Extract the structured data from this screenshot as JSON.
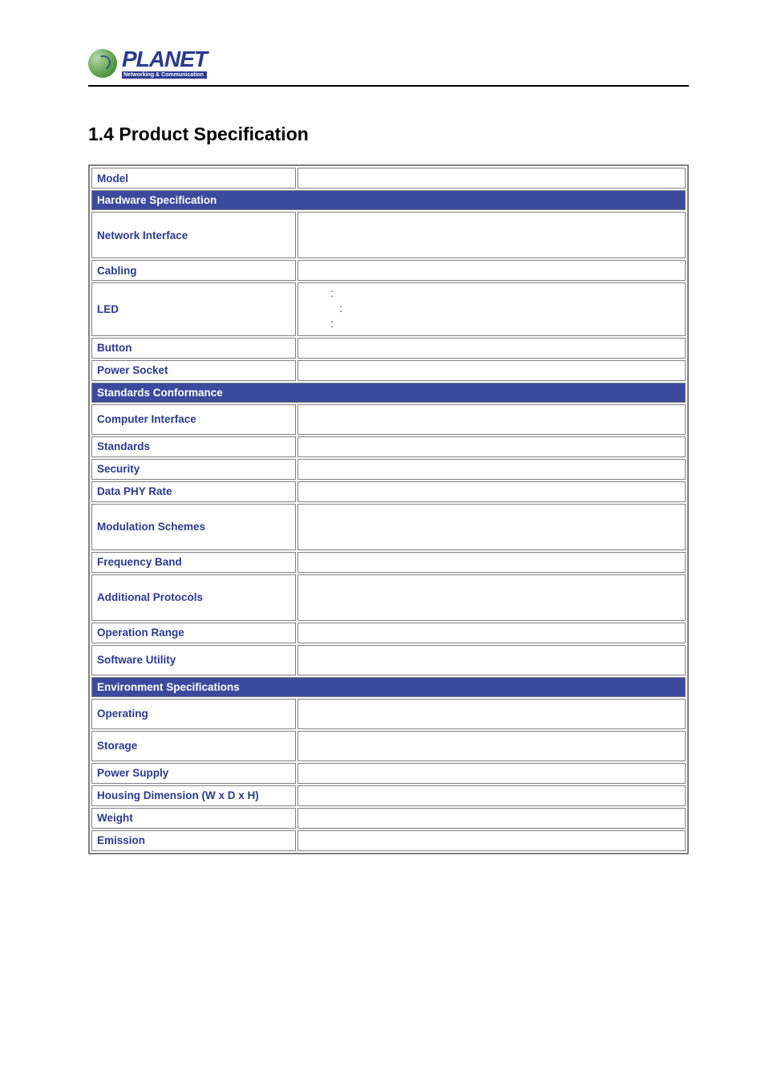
{
  "logo": {
    "name": "PLANET",
    "tagline": "Networking & Communication"
  },
  "section_title": "1.4 Product Specification",
  "colors": {
    "header_bg": "#3b4a9c",
    "header_fg": "#ffffff",
    "label_fg": "#2b3990",
    "border": "#808080",
    "rule": "#000000"
  },
  "table": {
    "rows": [
      {
        "type": "row",
        "height": "normal",
        "label": "Model",
        "value": ""
      },
      {
        "type": "section",
        "label": "Hardware Specification"
      },
      {
        "type": "row",
        "height": "tall",
        "label": "Network Interface",
        "value": ""
      },
      {
        "type": "row",
        "height": "normal",
        "label": "Cabling",
        "value": ""
      },
      {
        "type": "row",
        "height": "med",
        "label": "LED",
        "value_lines": [
          ":",
          "   :",
          ":"
        ]
      },
      {
        "type": "row",
        "height": "normal",
        "label": "Button",
        "value": ""
      },
      {
        "type": "row",
        "height": "normal",
        "label": "Power Socket",
        "value": ""
      },
      {
        "type": "section",
        "label": "Standards Conformance"
      },
      {
        "type": "row",
        "height": "half",
        "label": "Computer Interface",
        "value": ""
      },
      {
        "type": "row",
        "height": "normal",
        "label": "Standards",
        "value": ""
      },
      {
        "type": "row",
        "height": "normal",
        "label": "Security",
        "value": ""
      },
      {
        "type": "row",
        "height": "normal",
        "label": "Data PHY Rate",
        "value": ""
      },
      {
        "type": "row",
        "height": "tall",
        "label": "Modulation Schemes",
        "value": ""
      },
      {
        "type": "row",
        "height": "normal",
        "label": "Frequency Band",
        "value": ""
      },
      {
        "type": "row",
        "height": "tall",
        "label": "Additional Protocols",
        "value": ""
      },
      {
        "type": "row",
        "height": "normal",
        "label": "Operation Range",
        "value": ""
      },
      {
        "type": "row",
        "height": "half",
        "label": "Software Utility",
        "value": ""
      },
      {
        "type": "section",
        "label": "Environment Specifications"
      },
      {
        "type": "row",
        "height": "half",
        "label": "Operating",
        "value": ""
      },
      {
        "type": "row",
        "height": "half",
        "label": "Storage",
        "value": ""
      },
      {
        "type": "row",
        "height": "normal",
        "label": "Power Supply",
        "value": ""
      },
      {
        "type": "row",
        "height": "normal",
        "label": "Housing  Dimension (W x D x H)",
        "value": ""
      },
      {
        "type": "row",
        "height": "normal",
        "label": "Weight",
        "value": ""
      },
      {
        "type": "row",
        "height": "normal",
        "label": "Emission",
        "value": ""
      }
    ]
  }
}
